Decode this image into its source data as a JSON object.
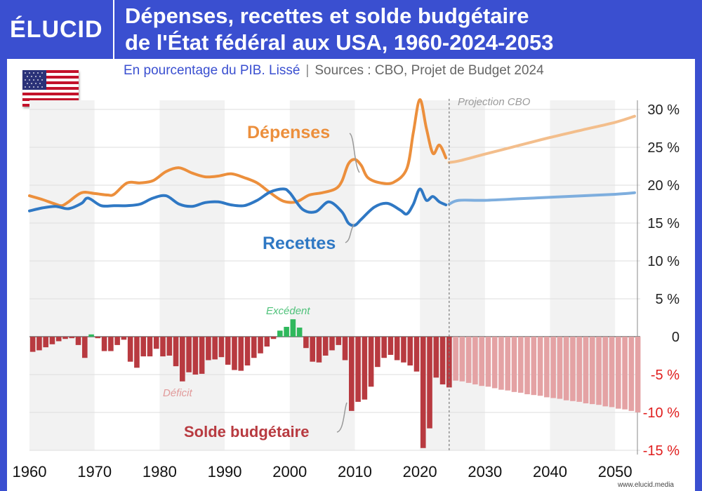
{
  "brand": {
    "logo": "ÉLUCID",
    "url": "www.elucid.media"
  },
  "title": {
    "line1": "Dépenses, recettes et solde budgétaire",
    "line2": "de l'État fédéral aux USA, 1960-2024-2053"
  },
  "subtitle": {
    "main": "En pourcentage du PIB. Lissé",
    "separator": "|",
    "sources": "Sources : CBO, Projet de Budget 2024"
  },
  "flag_icon": "usa-flag-icon",
  "colors": {
    "header": "#3a4fd0",
    "depenses": "#ec8f3c",
    "depenses_proj": "#f3be8c",
    "recettes": "#2f78c4",
    "recettes_proj": "#7eaede",
    "deficit": "#b83a40",
    "deficit_proj": "#e4a2a4",
    "surplus": "#2fb85c",
    "negative_tick": "#e01e1e"
  },
  "chart_data": {
    "type": "line",
    "x_label": "",
    "y_label": "",
    "xlim": [
      1960,
      2053
    ],
    "ylim": [
      -15,
      32
    ],
    "x_ticks": [
      "1960",
      "1970",
      "1980",
      "1990",
      "2000",
      "2010",
      "2020",
      "2030",
      "2040",
      "2050"
    ],
    "y_ticks": [
      {
        "value": 30,
        "label": "30 %"
      },
      {
        "value": 25,
        "label": "25 %"
      },
      {
        "value": 20,
        "label": "20 %"
      },
      {
        "value": 15,
        "label": "15 %"
      },
      {
        "value": 10,
        "label": "10 %"
      },
      {
        "value": 5,
        "label": "5 %"
      },
      {
        "value": 0,
        "label": "0"
      },
      {
        "value": -5,
        "label": "-5 %"
      },
      {
        "value": -10,
        "label": "-10 %"
      },
      {
        "value": -15,
        "label": "-15 %"
      }
    ],
    "projection_start": 2024.5,
    "projection_label": "Projection CBO",
    "shaded_decades": [
      [
        1960,
        1970
      ],
      [
        1980,
        1990
      ],
      [
        2000,
        2010
      ],
      [
        2020,
        2030
      ],
      [
        2040,
        2050
      ]
    ],
    "series": [
      {
        "name": "Dépenses",
        "values_hist": [
          [
            1960,
            18.6
          ],
          [
            1962,
            18.1
          ],
          [
            1964,
            17.5
          ],
          [
            1965,
            17.3
          ],
          [
            1966,
            17.8
          ],
          [
            1968,
            19.0
          ],
          [
            1970,
            18.9
          ],
          [
            1972,
            18.7
          ],
          [
            1973,
            18.8
          ],
          [
            1975,
            20.3
          ],
          [
            1977,
            20.3
          ],
          [
            1979,
            20.6
          ],
          [
            1981,
            21.8
          ],
          [
            1983,
            22.3
          ],
          [
            1985,
            21.6
          ],
          [
            1987,
            21.1
          ],
          [
            1989,
            21.2
          ],
          [
            1991,
            21.5
          ],
          [
            1993,
            21.0
          ],
          [
            1995,
            20.3
          ],
          [
            1997,
            19.0
          ],
          [
            1999,
            17.9
          ],
          [
            2001,
            17.8
          ],
          [
            2003,
            18.7
          ],
          [
            2005,
            19.0
          ],
          [
            2007,
            19.5
          ],
          [
            2008,
            20.5
          ],
          [
            2009,
            22.8
          ],
          [
            2010,
            23.4
          ],
          [
            2011,
            22.6
          ],
          [
            2012,
            21.0
          ],
          [
            2014,
            20.3
          ],
          [
            2016,
            20.4
          ],
          [
            2018,
            22.2
          ],
          [
            2019,
            27.0
          ],
          [
            2020,
            31.3
          ],
          [
            2021,
            27.5
          ],
          [
            2022,
            24.2
          ],
          [
            2023,
            25.3
          ],
          [
            2024,
            23.6
          ]
        ],
        "values_proj": [
          [
            2024.5,
            23.0
          ],
          [
            2026,
            23.2
          ],
          [
            2030,
            24.1
          ],
          [
            2035,
            25.2
          ],
          [
            2040,
            26.3
          ],
          [
            2045,
            27.3
          ],
          [
            2050,
            28.3
          ],
          [
            2053,
            29.1
          ]
        ],
        "label": "Dépenses"
      },
      {
        "name": "Recettes",
        "values_hist": [
          [
            1960,
            16.6
          ],
          [
            1962,
            17.0
          ],
          [
            1964,
            17.2
          ],
          [
            1966,
            16.9
          ],
          [
            1968,
            17.6
          ],
          [
            1969,
            18.3
          ],
          [
            1971,
            17.3
          ],
          [
            1973,
            17.3
          ],
          [
            1975,
            17.3
          ],
          [
            1977,
            17.5
          ],
          [
            1979,
            18.3
          ],
          [
            1981,
            18.6
          ],
          [
            1983,
            17.5
          ],
          [
            1985,
            17.2
          ],
          [
            1987,
            17.7
          ],
          [
            1989,
            17.8
          ],
          [
            1991,
            17.4
          ],
          [
            1993,
            17.3
          ],
          [
            1995,
            18.0
          ],
          [
            1997,
            19.1
          ],
          [
            1999,
            19.5
          ],
          [
            2000,
            19.0
          ],
          [
            2002,
            16.8
          ],
          [
            2004,
            16.5
          ],
          [
            2006,
            17.8
          ],
          [
            2008,
            16.5
          ],
          [
            2009,
            15.0
          ],
          [
            2010,
            14.7
          ],
          [
            2011,
            15.5
          ],
          [
            2013,
            17.1
          ],
          [
            2015,
            17.6
          ],
          [
            2017,
            16.7
          ],
          [
            2018,
            16.2
          ],
          [
            2019,
            17.5
          ],
          [
            2020,
            19.5
          ],
          [
            2021,
            18.0
          ],
          [
            2022,
            18.5
          ],
          [
            2023,
            17.8
          ],
          [
            2024,
            17.4
          ]
        ],
        "values_proj": [
          [
            2024.5,
            17.5
          ],
          [
            2026,
            18.0
          ],
          [
            2030,
            18.0
          ],
          [
            2035,
            18.2
          ],
          [
            2040,
            18.4
          ],
          [
            2045,
            18.6
          ],
          [
            2050,
            18.8
          ],
          [
            2053,
            19.0
          ]
        ],
        "label": "Recettes"
      },
      {
        "name": "Solde budgétaire",
        "type": "bar",
        "label": "Solde budgétaire",
        "deficit_label": "Déficit",
        "surplus_label": "Excédent",
        "values": [
          [
            1960,
            -2.0
          ],
          [
            1961,
            -1.8
          ],
          [
            1962,
            -1.4
          ],
          [
            1963,
            -1.0
          ],
          [
            1964,
            -0.6
          ],
          [
            1965,
            -0.3
          ],
          [
            1966,
            -0.2
          ],
          [
            1967,
            -1.1
          ],
          [
            1968,
            -2.8
          ],
          [
            1969,
            0.3
          ],
          [
            1970,
            -0.2
          ],
          [
            1971,
            -1.9
          ],
          [
            1972,
            -1.9
          ],
          [
            1973,
            -1.1
          ],
          [
            1974,
            -0.4
          ],
          [
            1975,
            -3.3
          ],
          [
            1976,
            -4.1
          ],
          [
            1977,
            -2.6
          ],
          [
            1978,
            -2.6
          ],
          [
            1979,
            -1.6
          ],
          [
            1980,
            -2.6
          ],
          [
            1981,
            -2.5
          ],
          [
            1982,
            -3.9
          ],
          [
            1983,
            -5.9
          ],
          [
            1984,
            -4.7
          ],
          [
            1985,
            -5.0
          ],
          [
            1986,
            -4.9
          ],
          [
            1987,
            -3.1
          ],
          [
            1988,
            -3.0
          ],
          [
            1989,
            -2.7
          ],
          [
            1990,
            -3.7
          ],
          [
            1991,
            -4.4
          ],
          [
            1992,
            -4.5
          ],
          [
            1993,
            -3.8
          ],
          [
            1994,
            -2.8
          ],
          [
            1995,
            -2.2
          ],
          [
            1996,
            -1.3
          ],
          [
            1997,
            -0.3
          ],
          [
            1998,
            0.8
          ],
          [
            1999,
            1.3
          ],
          [
            2000,
            2.3
          ],
          [
            2001,
            1.2
          ],
          [
            2002,
            -1.5
          ],
          [
            2003,
            -3.3
          ],
          [
            2004,
            -3.4
          ],
          [
            2005,
            -2.5
          ],
          [
            2006,
            -1.8
          ],
          [
            2007,
            -1.1
          ],
          [
            2008,
            -3.1
          ],
          [
            2009,
            -9.8
          ],
          [
            2010,
            -8.6
          ],
          [
            2011,
            -8.3
          ],
          [
            2012,
            -6.6
          ],
          [
            2013,
            -4.0
          ],
          [
            2014,
            -2.8
          ],
          [
            2015,
            -2.4
          ],
          [
            2016,
            -3.1
          ],
          [
            2017,
            -3.4
          ],
          [
            2018,
            -3.8
          ],
          [
            2019,
            -4.6
          ],
          [
            2020,
            -14.7
          ],
          [
            2021,
            -12.1
          ],
          [
            2022,
            -5.4
          ],
          [
            2023,
            -6.3
          ],
          [
            2024,
            -6.7
          ],
          [
            2025,
            -5.8
          ],
          [
            2026,
            -5.9
          ],
          [
            2027,
            -6.1
          ],
          [
            2028,
            -6.3
          ],
          [
            2029,
            -6.5
          ],
          [
            2030,
            -6.6
          ],
          [
            2031,
            -6.8
          ],
          [
            2032,
            -7.0
          ],
          [
            2033,
            -7.1
          ],
          [
            2034,
            -7.3
          ],
          [
            2035,
            -7.4
          ],
          [
            2036,
            -7.6
          ],
          [
            2037,
            -7.7
          ],
          [
            2038,
            -7.8
          ],
          [
            2039,
            -8.0
          ],
          [
            2040,
            -8.1
          ],
          [
            2041,
            -8.2
          ],
          [
            2042,
            -8.4
          ],
          [
            2043,
            -8.5
          ],
          [
            2044,
            -8.6
          ],
          [
            2045,
            -8.8
          ],
          [
            2046,
            -8.9
          ],
          [
            2047,
            -9.0
          ],
          [
            2048,
            -9.2
          ],
          [
            2049,
            -9.3
          ],
          [
            2050,
            -9.5
          ],
          [
            2051,
            -9.6
          ],
          [
            2052,
            -9.8
          ],
          [
            2053,
            -10.0
          ]
        ]
      }
    ]
  }
}
